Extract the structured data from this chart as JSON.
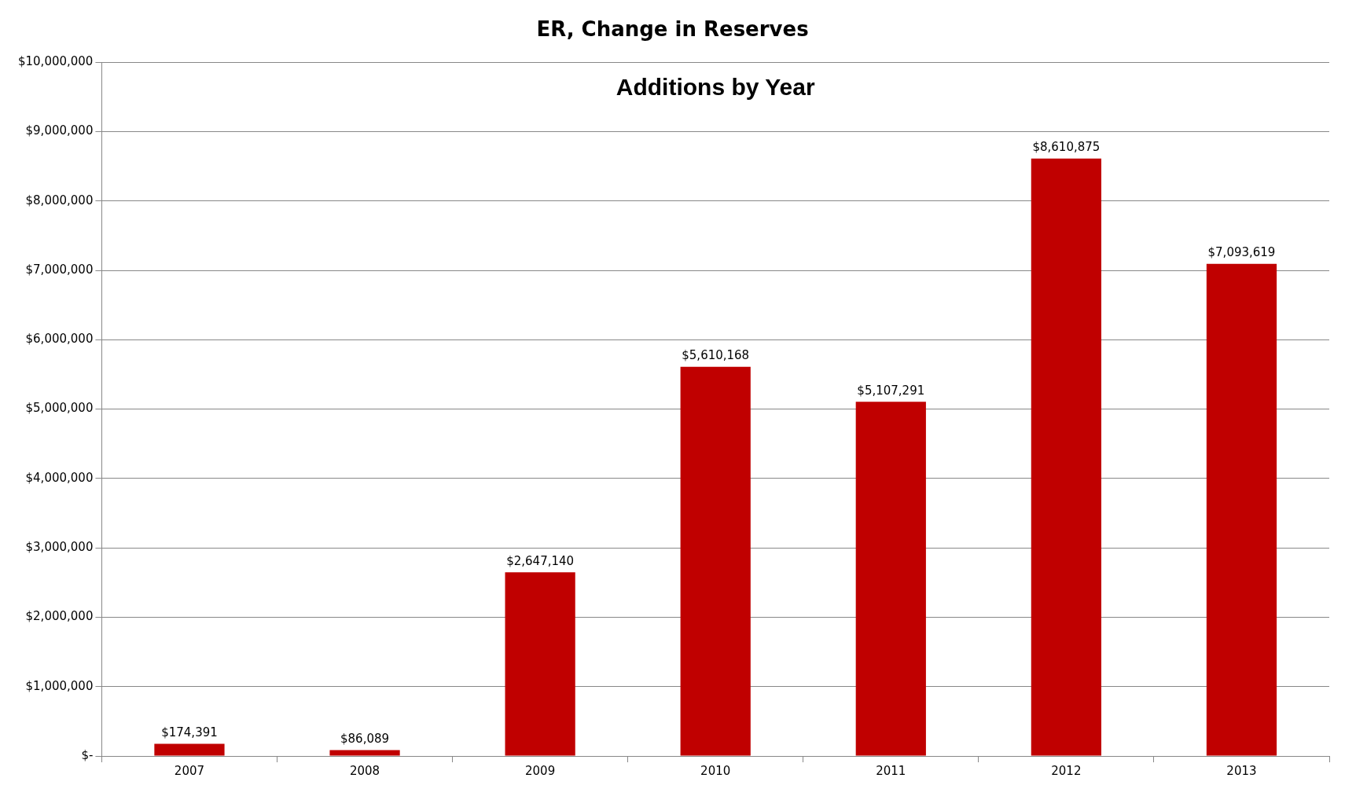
{
  "chart_data": {
    "type": "bar",
    "title": "ER, Change in Reserves",
    "subtitle": "Additions by Year",
    "categories": [
      "2007",
      "2008",
      "2009",
      "2010",
      "2011",
      "2012",
      "2013"
    ],
    "values": [
      174391,
      86089,
      2647140,
      5610168,
      5107291,
      8610875,
      7093619
    ],
    "value_labels": [
      "$174,391",
      "$86,089",
      "$2,647,140",
      "$5,610,168",
      "$5,107,291",
      "$8,610,875",
      "$7,093,619"
    ],
    "color": "#c00000",
    "ylim": [
      0,
      10000000
    ],
    "yticks": [
      {
        "value": 0,
        "label": "$-"
      },
      {
        "value": 1000000,
        "label": "$1,000,000"
      },
      {
        "value": 2000000,
        "label": "$2,000,000"
      },
      {
        "value": 3000000,
        "label": "$3,000,000"
      },
      {
        "value": 4000000,
        "label": "$4,000,000"
      },
      {
        "value": 5000000,
        "label": "$5,000,000"
      },
      {
        "value": 6000000,
        "label": "$6,000,000"
      },
      {
        "value": 7000000,
        "label": "$7,000,000"
      },
      {
        "value": 8000000,
        "label": "$8,000,000"
      },
      {
        "value": 9000000,
        "label": "$9,000,000"
      },
      {
        "value": 10000000,
        "label": "$10,000,000"
      }
    ],
    "grid": "y",
    "legend": false
  }
}
